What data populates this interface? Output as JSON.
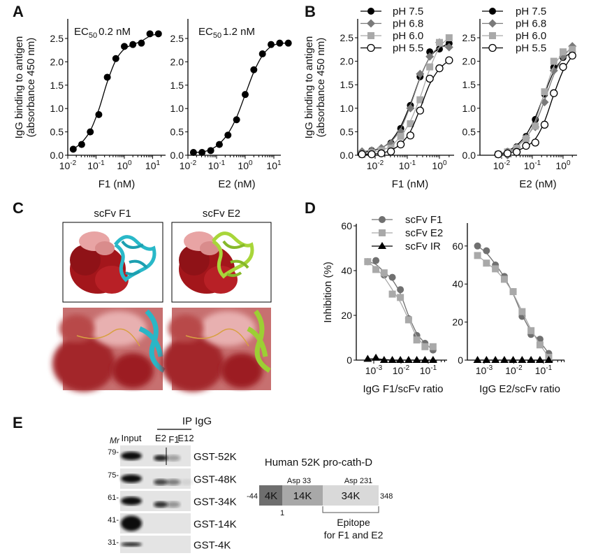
{
  "panel_labels": {
    "a": "A",
    "b": "B",
    "c": "C",
    "d": "D",
    "e": "E"
  },
  "panel_a": {
    "ylabel_line1": "IgG binding to antigen",
    "ylabel_line2": "(absorbance 450 nm)",
    "ec50_f1": {
      "prefix": "EC",
      "sub": "50",
      "value": "0.2 nM"
    },
    "ec50_e2": {
      "prefix": "EC",
      "sub": "50",
      "value": "1.2 nM"
    }
  },
  "panel_b": {
    "ylabel_line1": "IgG binding to antigen",
    "ylabel_line2": "(absorbance 450 nm)"
  },
  "panel_c": {
    "title_f1": "scFv F1",
    "title_e2": "scFv E2"
  },
  "panel_d": {
    "ylabel": "Inhibition (%)"
  },
  "panel_e": {
    "mr_label": "Mr",
    "input_label": "Input",
    "ip_label": "IP IgG",
    "lanes": [
      "E2",
      "F1",
      "E12"
    ],
    "markers": [
      "79-",
      "75-",
      "61-",
      "41-",
      "31-"
    ],
    "constructs": [
      "GST-52K",
      "GST-48K",
      "GST-34K",
      "GST-14K",
      "GST-4K"
    ],
    "bands": [
      {
        "input": 1.0,
        "e2": 0.9,
        "f1": 0.35,
        "e12": 0
      },
      {
        "input": 1.0,
        "e2": 0.75,
        "f1": 0.5,
        "e12": 0.08
      },
      {
        "input": 1.0,
        "e2": 0.85,
        "f1": 0.4,
        "e12": 0
      },
      {
        "input": 1.0,
        "e2": 0,
        "f1": 0,
        "e12": 0
      },
      {
        "input": 0.9,
        "e2": 0,
        "f1": 0,
        "e12": 0
      }
    ],
    "domain_map": {
      "title": "Human 52K pro-cath-D",
      "segments": [
        "4K",
        "14K",
        "34K"
      ],
      "segment_colors": [
        "#6e6e6e",
        "#a8a8a8",
        "#d9d9d9"
      ],
      "asp_labels": [
        "Asp 33",
        "Asp 231"
      ],
      "asp_color": "#e8202a",
      "start": "-44",
      "one": "1",
      "end": "348",
      "epitope_line1": "Epitope",
      "epitope_line2": "for F1 and E2"
    }
  },
  "chart_data": [
    {
      "id": "a1",
      "type": "scatter",
      "xscale": "log",
      "xlabel": "F1 (nM)",
      "ylabel": "IgG binding to antigen (absorbance 450 nm)",
      "ylim": [
        0,
        2.8
      ],
      "x_ticks": [
        {
          "base": "10",
          "exp": "-2"
        },
        {
          "base": "10",
          "exp": "-1"
        },
        {
          "base": "10",
          "exp": "0"
        },
        {
          "base": "10",
          "exp": "1"
        }
      ],
      "y_ticks": [
        "0.0",
        "0.5",
        "1.0",
        "1.5",
        "2.0",
        "2.5"
      ],
      "series": [
        {
          "marker": "circle-filled",
          "color": "#000000",
          "x": [
            0.0156,
            0.031,
            0.0625,
            0.125,
            0.25,
            0.5,
            1,
            2,
            4,
            8,
            16
          ],
          "y": [
            0.13,
            0.23,
            0.5,
            0.87,
            1.67,
            2.07,
            2.33,
            2.37,
            2.4,
            2.6,
            2.6
          ]
        }
      ]
    },
    {
      "id": "a2",
      "type": "scatter",
      "xscale": "log",
      "xlabel": "E2 (nM)",
      "ylim": [
        0,
        2.8
      ],
      "x_ticks": [
        {
          "base": "10",
          "exp": "-2"
        },
        {
          "base": "10",
          "exp": "-1"
        },
        {
          "base": "10",
          "exp": "0"
        },
        {
          "base": "10",
          "exp": "1"
        }
      ],
      "y_ticks": [
        "0.0",
        "0.5",
        "1.0",
        "1.5",
        "2.0",
        "2.5"
      ],
      "series": [
        {
          "marker": "circle-filled",
          "color": "#000000",
          "x": [
            0.0156,
            0.031,
            0.0625,
            0.125,
            0.25,
            0.5,
            1,
            2,
            4,
            8,
            16,
            32
          ],
          "y": [
            0.06,
            0.06,
            0.1,
            0.23,
            0.43,
            0.76,
            1.3,
            1.83,
            2.17,
            2.37,
            2.4,
            2.4
          ]
        }
      ]
    },
    {
      "id": "b1",
      "type": "scatter",
      "xscale": "log",
      "xlabel": "F1 (nM)",
      "ylim": [
        0,
        2.8
      ],
      "legend": "top-left",
      "x_ticks": [
        {
          "base": "10",
          "exp": "-2"
        },
        {
          "base": "10",
          "exp": "-1"
        },
        {
          "base": "10",
          "exp": "0"
        }
      ],
      "y_ticks": [
        "0.0",
        "0.5",
        "1.0",
        "1.5",
        "2.0",
        "2.5"
      ],
      "series": [
        {
          "name": "pH 7.5",
          "marker": "circle-filled",
          "color": "#000000",
          "x": [
            0.0039,
            0.0078,
            0.0156,
            0.031,
            0.0625,
            0.125,
            0.25,
            0.5,
            1,
            2
          ],
          "y": [
            0.05,
            0.1,
            0.13,
            0.26,
            0.57,
            1.06,
            1.67,
            2.2,
            2.26,
            2.38
          ]
        },
        {
          "name": "pH 6.8",
          "marker": "diamond",
          "color": "#7a7a7a",
          "x": [
            0.0039,
            0.0078,
            0.0156,
            0.031,
            0.0625,
            0.125,
            0.25,
            0.5,
            1,
            2
          ],
          "y": [
            0.08,
            0.1,
            0.15,
            0.25,
            0.5,
            1.0,
            1.73,
            2.1,
            2.4,
            2.3
          ]
        },
        {
          "name": "pH 6.0",
          "marker": "square",
          "color": "#a9a9a9",
          "x": [
            0.0039,
            0.0078,
            0.0156,
            0.031,
            0.0625,
            0.125,
            0.25,
            0.5,
            1,
            2
          ],
          "y": [
            0.02,
            0.05,
            0.1,
            0.15,
            0.4,
            0.67,
            1.18,
            1.88,
            2.4,
            2.5
          ]
        },
        {
          "name": "pH 5.5",
          "marker": "circle-open",
          "color": "#000000",
          "x": [
            0.0039,
            0.0078,
            0.0156,
            0.031,
            0.0625,
            0.125,
            0.25,
            0.5,
            1,
            2
          ],
          "y": [
            0.02,
            0.02,
            0.04,
            0.08,
            0.23,
            0.42,
            0.95,
            1.63,
            1.85,
            2.02
          ]
        }
      ]
    },
    {
      "id": "b2",
      "type": "scatter",
      "xscale": "log",
      "xlabel": "E2 (nM)",
      "ylim": [
        0,
        2.8
      ],
      "legend": "top-left",
      "x_ticks": [
        {
          "base": "10",
          "exp": "-2"
        },
        {
          "base": "10",
          "exp": "-1"
        },
        {
          "base": "10",
          "exp": "0"
        }
      ],
      "y_ticks": [
        "0.0",
        "0.5",
        "1.0",
        "1.5",
        "2.0",
        "2.5"
      ],
      "series": [
        {
          "name": "pH 7.5",
          "marker": "circle-filled",
          "color": "#000000",
          "x": [
            0.0078,
            0.0156,
            0.031,
            0.0625,
            0.125,
            0.25,
            0.5,
            1,
            2
          ],
          "y": [
            0.02,
            0.08,
            0.18,
            0.4,
            0.76,
            1.3,
            1.87,
            2.08,
            2.2
          ]
        },
        {
          "name": "pH 6.8",
          "marker": "diamond",
          "color": "#7a7a7a",
          "x": [
            0.0078,
            0.0156,
            0.031,
            0.0625,
            0.125,
            0.25,
            0.5,
            1,
            2
          ],
          "y": [
            0.02,
            0.0,
            0.17,
            0.37,
            0.6,
            1.13,
            1.8,
            2.1,
            2.32
          ]
        },
        {
          "name": "pH 6.0",
          "marker": "square",
          "color": "#a9a9a9",
          "x": [
            0.0078,
            0.0156,
            0.031,
            0.0625,
            0.125,
            0.25,
            0.5,
            1,
            2
          ],
          "y": [
            0.02,
            0.07,
            0.15,
            0.35,
            0.62,
            1.35,
            2.0,
            2.2,
            2.25
          ]
        },
        {
          "name": "pH 5.5",
          "marker": "circle-open",
          "color": "#000000",
          "x": [
            0.0078,
            0.0156,
            0.031,
            0.0625,
            0.125,
            0.25,
            0.5,
            1,
            2
          ],
          "y": [
            0.02,
            0.04,
            0.07,
            0.2,
            0.27,
            0.65,
            1.32,
            1.88,
            2.12
          ]
        }
      ]
    },
    {
      "id": "d1",
      "type": "scatter",
      "xscale": "log",
      "xlabel": "IgG F1/scFv ratio",
      "ylabel": "Inhibition (%)",
      "ylim": [
        0,
        60
      ],
      "legend": "top",
      "x_ticks": [
        {
          "base": "10",
          "exp": "-3"
        },
        {
          "base": "10",
          "exp": "-2"
        },
        {
          "base": "10",
          "exp": "-1"
        }
      ],
      "y_ticks": [
        "0",
        "20",
        "40",
        "60"
      ],
      "series": [
        {
          "name": "scFv F1",
          "marker": "circle-filled",
          "color": "#707070",
          "x": [
            0.0006,
            0.0012,
            0.0024,
            0.0048,
            0.0095,
            0.019,
            0.038,
            0.076,
            0.15
          ],
          "y": [
            44,
            44.5,
            38,
            37,
            31.5,
            18.5,
            11,
            7.5,
            4.5
          ]
        },
        {
          "name": "scFv E2",
          "marker": "square",
          "color": "#a9a9a9",
          "x": [
            0.0006,
            0.0012,
            0.0024,
            0.0048,
            0.0095,
            0.019,
            0.038,
            0.076,
            0.15
          ],
          "y": [
            44,
            40.5,
            39,
            29.5,
            28,
            18,
            9,
            6,
            6
          ]
        },
        {
          "name": "scFv IR",
          "marker": "triangle",
          "color": "#000000",
          "x": [
            0.0006,
            0.0012,
            0.0024,
            0.0048,
            0.0095,
            0.019,
            0.038,
            0.076,
            0.15
          ],
          "y": [
            0.5,
            1,
            0,
            0,
            0,
            0,
            0,
            0,
            0
          ]
        }
      ]
    },
    {
      "id": "d2",
      "type": "scatter",
      "xscale": "log",
      "xlabel": "IgG E2/scFv ratio",
      "ylim": [
        0,
        70
      ],
      "x_ticks": [
        {
          "base": "10",
          "exp": "-3"
        },
        {
          "base": "10",
          "exp": "-2"
        },
        {
          "base": "10",
          "exp": "-1"
        }
      ],
      "y_ticks": [
        "0",
        "20",
        "40",
        "60"
      ],
      "series": [
        {
          "marker": "circle-filled",
          "color": "#707070",
          "x": [
            0.0006,
            0.0012,
            0.0024,
            0.0048,
            0.0095,
            0.019,
            0.038,
            0.076,
            0.15
          ],
          "y": [
            60,
            57.5,
            50,
            44,
            36,
            23,
            13.5,
            11,
            3.5
          ]
        },
        {
          "marker": "square",
          "color": "#a9a9a9",
          "x": [
            0.0006,
            0.0012,
            0.0024,
            0.0048,
            0.0095,
            0.019,
            0.038,
            0.076,
            0.15
          ],
          "y": [
            55,
            51,
            48,
            42.5,
            36,
            25.5,
            15.5,
            8,
            1.5
          ]
        },
        {
          "marker": "triangle",
          "color": "#000000",
          "x": [
            0.0006,
            0.0012,
            0.0024,
            0.0048,
            0.0095,
            0.019,
            0.038,
            0.076,
            0.15
          ],
          "y": [
            0,
            0,
            0,
            0,
            0,
            0,
            0,
            0,
            0
          ]
        }
      ]
    }
  ]
}
